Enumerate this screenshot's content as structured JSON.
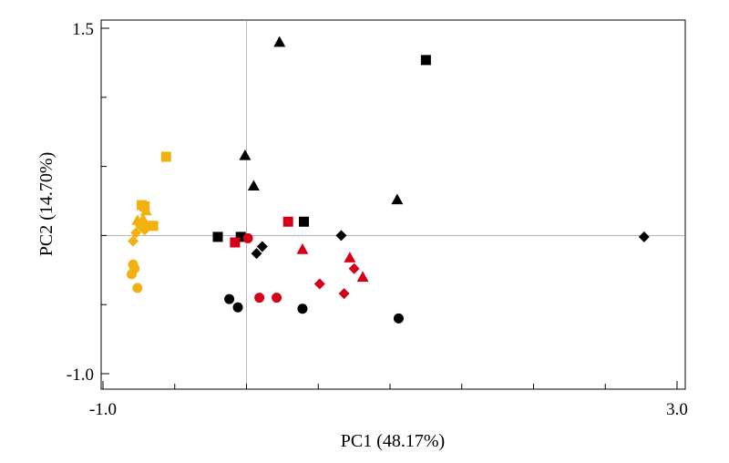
{
  "chart_data": {
    "type": "scatter",
    "xlabel": "PC1 (48.17%)",
    "ylabel": "PC2 (14.70%)",
    "xlim": [
      -1.0,
      3.0
    ],
    "ylim": [
      -1.0,
      1.5
    ],
    "x_ticks": [
      {
        "value": -1.0,
        "label": "-1.0"
      },
      {
        "value": 3.0,
        "label": "3.0"
      }
    ],
    "y_ticks": [
      {
        "value": 1.5,
        "label": "1.5"
      },
      {
        "value": -1.0,
        "label": "-1.0"
      }
    ],
    "x_minor_ticks": [
      -0.5,
      0.0,
      0.5,
      1.0,
      1.5,
      2.0,
      2.5
    ],
    "y_minor_ticks": [
      1.0,
      0.5,
      0.0,
      -0.5
    ],
    "reference_lines": {
      "x": 0.0,
      "y": 0.0
    },
    "grid": false,
    "series": [
      {
        "color": "#f2b10e",
        "points": [
          {
            "x": -0.56,
            "y": 0.57,
            "shape": "square"
          },
          {
            "x": -0.73,
            "y": 0.22,
            "shape": "square"
          },
          {
            "x": -0.71,
            "y": 0.21,
            "shape": "square"
          },
          {
            "x": -0.7,
            "y": 0.18,
            "shape": "triangle"
          },
          {
            "x": -0.72,
            "y": 0.12,
            "shape": "triangle"
          },
          {
            "x": -0.76,
            "y": 0.11,
            "shape": "triangle"
          },
          {
            "x": -0.65,
            "y": 0.07,
            "shape": "square"
          },
          {
            "x": -0.68,
            "y": 0.07,
            "shape": "square"
          },
          {
            "x": -0.74,
            "y": 0.07,
            "shape": "diamond"
          },
          {
            "x": -0.71,
            "y": 0.04,
            "shape": "diamond"
          },
          {
            "x": -0.77,
            "y": 0.02,
            "shape": "diamond"
          },
          {
            "x": -0.79,
            "y": -0.04,
            "shape": "diamond"
          },
          {
            "x": -0.79,
            "y": -0.21,
            "shape": "circle"
          },
          {
            "x": -0.78,
            "y": -0.24,
            "shape": "circle"
          },
          {
            "x": -0.8,
            "y": -0.28,
            "shape": "circle"
          },
          {
            "x": -0.76,
            "y": -0.38,
            "shape": "circle"
          }
        ]
      },
      {
        "color": "#000000",
        "points": [
          {
            "x": 0.23,
            "y": 1.4,
            "shape": "triangle"
          },
          {
            "x": 1.25,
            "y": 1.27,
            "shape": "square"
          },
          {
            "x": -0.01,
            "y": 0.58,
            "shape": "triangle"
          },
          {
            "x": 0.05,
            "y": 0.36,
            "shape": "triangle"
          },
          {
            "x": 1.05,
            "y": 0.26,
            "shape": "triangle"
          },
          {
            "x": 0.4,
            "y": 0.1,
            "shape": "square"
          },
          {
            "x": -0.2,
            "y": -0.01,
            "shape": "square"
          },
          {
            "x": -0.04,
            "y": -0.01,
            "shape": "square"
          },
          {
            "x": 0.66,
            "y": 0.0,
            "shape": "diamond"
          },
          {
            "x": 2.77,
            "y": -0.01,
            "shape": "diamond"
          },
          {
            "x": 0.11,
            "y": -0.08,
            "shape": "diamond"
          },
          {
            "x": 0.07,
            "y": -0.13,
            "shape": "diamond"
          },
          {
            "x": -0.12,
            "y": -0.46,
            "shape": "circle"
          },
          {
            "x": -0.06,
            "y": -0.52,
            "shape": "circle"
          },
          {
            "x": 0.39,
            "y": -0.53,
            "shape": "circle"
          },
          {
            "x": 1.06,
            "y": -0.6,
            "shape": "circle"
          }
        ]
      },
      {
        "color": "#d4001a",
        "points": [
          {
            "x": 0.29,
            "y": 0.1,
            "shape": "square"
          },
          {
            "x": -0.08,
            "y": -0.05,
            "shape": "square"
          },
          {
            "x": 0.01,
            "y": -0.02,
            "shape": "circle"
          },
          {
            "x": 0.39,
            "y": -0.1,
            "shape": "triangle"
          },
          {
            "x": 0.72,
            "y": -0.16,
            "shape": "triangle"
          },
          {
            "x": 0.75,
            "y": -0.24,
            "shape": "diamond"
          },
          {
            "x": 0.81,
            "y": -0.3,
            "shape": "triangle"
          },
          {
            "x": 0.51,
            "y": -0.35,
            "shape": "diamond"
          },
          {
            "x": 0.68,
            "y": -0.42,
            "shape": "diamond"
          },
          {
            "x": 0.09,
            "y": -0.45,
            "shape": "circle"
          },
          {
            "x": 0.21,
            "y": -0.45,
            "shape": "circle"
          }
        ]
      }
    ]
  }
}
